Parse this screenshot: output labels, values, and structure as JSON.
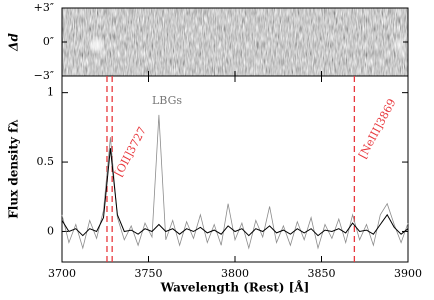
{
  "chart_data": {
    "type": "line",
    "xlabel": "Wavelength (Rest) [Å]",
    "ylabel": "Flux density fλ",
    "x": [
      3700,
      3704,
      3708,
      3712,
      3716,
      3720,
      3724,
      3728,
      3732,
      3736,
      3740,
      3744,
      3748,
      3752,
      3756,
      3760,
      3764,
      3768,
      3772,
      3776,
      3780,
      3784,
      3788,
      3792,
      3796,
      3800,
      3804,
      3808,
      3812,
      3816,
      3820,
      3824,
      3828,
      3832,
      3836,
      3840,
      3844,
      3848,
      3852,
      3856,
      3860,
      3864,
      3868,
      3872,
      3876,
      3880,
      3884,
      3888,
      3892,
      3896,
      3900
    ],
    "series": [
      {
        "color": "#8c8c8c",
        "values": [
          0.12,
          -0.08,
          0.05,
          -0.12,
          0.08,
          -0.05,
          0.15,
          0.68,
          0.1,
          -0.06,
          0.04,
          -0.1,
          0.06,
          -0.04,
          0.84,
          -0.06,
          0.08,
          -0.1,
          0.07,
          -0.05,
          0.12,
          -0.08,
          0.05,
          -0.1,
          0.2,
          -0.06,
          0.06,
          -0.12,
          0.08,
          -0.04,
          0.18,
          -0.08,
          0.04,
          -0.1,
          0.07,
          -0.06,
          0.1,
          -0.12,
          0.05,
          -0.05,
          0.09,
          -0.08,
          0.12,
          -0.06,
          0.05,
          -0.1,
          0.12,
          0.2,
          0.05,
          -0.08,
          0.06
        ]
      },
      {
        "color": "#000000",
        "values": [
          0.08,
          0.0,
          0.02,
          -0.03,
          0.02,
          0.0,
          0.1,
          0.6,
          0.12,
          0.0,
          0.01,
          -0.02,
          0.02,
          0.0,
          0.05,
          0.0,
          0.02,
          -0.02,
          0.02,
          0.0,
          0.03,
          -0.01,
          0.01,
          -0.02,
          0.04,
          0.0,
          0.02,
          -0.03,
          0.02,
          0.0,
          0.04,
          -0.01,
          0.01,
          -0.02,
          0.02,
          -0.01,
          0.02,
          -0.03,
          0.01,
          0.0,
          0.02,
          -0.01,
          0.06,
          0.0,
          0.01,
          -0.02,
          0.05,
          0.12,
          0.03,
          -0.02,
          0.02
        ]
      }
    ],
    "xlim": [
      3700,
      3900
    ],
    "xticks": [
      3700,
      3750,
      3800,
      3850,
      3900
    ],
    "ylim": [
      -0.22,
      1.12
    ],
    "yticks": [
      0,
      0.5,
      1
    ],
    "vlines": [
      3726,
      3729,
      3869
    ],
    "vline_color": "#e8383d",
    "annotations": [
      "LBGs",
      "[OII]3727",
      "[NeIII]3869"
    ],
    "image_panel": {
      "ylabel": "Δd",
      "ylim": [
        -3,
        3
      ],
      "yticks": [
        {
          "value": 3,
          "label": "+3″"
        },
        {
          "value": 0,
          "label": "0″"
        },
        {
          "value": -3,
          "label": "−3″"
        }
      ]
    }
  }
}
